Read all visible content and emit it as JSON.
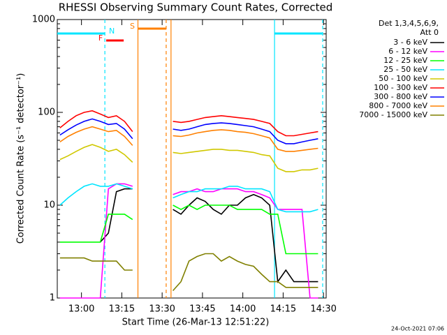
{
  "chart_data": {
    "type": "line",
    "title": "RHESSI Observing Summary Count Rates, Corrected",
    "x_label": "Start Time (26-Mar-13 12:51:22)",
    "y_label": "Corrected Count Rate (s⁻¹ detector⁻¹)",
    "legend_header": [
      "Det 1,3,4,5,6,9,",
      "Att 0"
    ],
    "footer": "24-Oct-2021 07:06",
    "log_y": true,
    "legend_position": "right",
    "xlim": [
      771,
      871
    ],
    "xticks": [
      {
        "value": 780,
        "label": "13:00"
      },
      {
        "value": 795,
        "label": "13:15"
      },
      {
        "value": 810,
        "label": "13:30"
      },
      {
        "value": 825,
        "label": "13:45"
      },
      {
        "value": 840,
        "label": "14:00"
      },
      {
        "value": 855,
        "label": "14:15"
      },
      {
        "value": 870,
        "label": "14:30"
      }
    ],
    "ylim": [
      1,
      1000
    ],
    "yticks": [
      1,
      10,
      100,
      1000
    ],
    "flags": [
      {
        "label": "N",
        "color": "#00e5ff",
        "intervals": [
          [
            771,
            788.7
          ],
          [
            851.8,
            869.7
          ]
        ]
      },
      {
        "label": "F",
        "color": "#ff0000",
        "intervals": [
          [
            789.2,
            795.7
          ]
        ]
      },
      {
        "label": "S",
        "color": "#ff8000",
        "intervals": [
          [
            801,
            811.5
          ]
        ]
      }
    ],
    "markers": [
      {
        "x": 788.7,
        "color": "#00e5ff",
        "style": "dashed"
      },
      {
        "x": 801,
        "color": "#ff8000",
        "style": "solid"
      },
      {
        "x": 811.5,
        "color": "#ff8000",
        "style": "dashed"
      },
      {
        "x": 813.3,
        "color": "#ff8000",
        "style": "solid"
      },
      {
        "x": 851.8,
        "color": "#00e5ff",
        "style": "solid"
      },
      {
        "x": 869.7,
        "color": "#00e5ff",
        "style": "dashed"
      }
    ],
    "x": [
      772,
      775,
      778,
      781,
      784,
      787,
      790,
      793,
      796,
      799,
      807,
      814,
      817,
      820,
      823,
      826,
      829,
      832,
      835,
      838,
      841,
      844,
      847,
      850,
      853,
      856,
      859,
      862,
      865,
      868
    ],
    "series": [
      {
        "name": "3 - 6 keV",
        "color": "#000000",
        "values": [
          null,
          null,
          null,
          null,
          null,
          4,
          5,
          14,
          15,
          15,
          null,
          9,
          8,
          10,
          12,
          11,
          9,
          8,
          10,
          10,
          12,
          13,
          12,
          10,
          1.5,
          2,
          1.5,
          1.5,
          1.5,
          1.5
        ]
      },
      {
        "name": "6 - 12 keV",
        "color": "#ff00ff",
        "values": [
          1,
          1,
          1,
          1,
          1,
          1,
          15,
          17,
          17,
          16,
          null,
          13,
          14,
          14,
          15,
          14,
          14,
          15,
          15,
          15,
          14,
          14,
          13,
          12,
          9,
          9,
          9,
          9,
          1,
          1
        ]
      },
      {
        "name": "12 - 25 keV",
        "color": "#00ff00",
        "values": [
          4,
          4,
          4,
          4,
          4,
          4,
          8,
          8,
          8,
          7,
          null,
          10,
          9,
          10,
          9,
          10,
          10,
          10,
          10,
          9,
          9,
          9,
          9,
          8,
          8,
          3,
          3,
          3,
          3,
          3
        ]
      },
      {
        "name": "25 - 50 keV",
        "color": "#00e5ff",
        "values": [
          10,
          12,
          14,
          16,
          17,
          16,
          16,
          17,
          16,
          15,
          null,
          12,
          13,
          14,
          14,
          15,
          15,
          15,
          16,
          16,
          15,
          15,
          15,
          14,
          9,
          8.5,
          8.5,
          8.5,
          8.5,
          9
        ]
      },
      {
        "name": "50 - 100 keV",
        "color": "#d0c800",
        "values": [
          31,
          34,
          38,
          42,
          45,
          42,
          38,
          40,
          35,
          29,
          null,
          37,
          36,
          37,
          38,
          39,
          40,
          40,
          39,
          39,
          38,
          37,
          35,
          34,
          25,
          23,
          23,
          24,
          24,
          25
        ]
      },
      {
        "name": "100 - 300 keV",
        "color": "#ff0000",
        "values": [
          68,
          80,
          92,
          100,
          104,
          96,
          88,
          92,
          80,
          62,
          null,
          80,
          78,
          80,
          84,
          88,
          90,
          92,
          90,
          88,
          86,
          84,
          80,
          76,
          62,
          56,
          56,
          58,
          60,
          62
        ]
      },
      {
        "name": "300 - 800 keV",
        "color": "#0000ff",
        "values": [
          57,
          65,
          73,
          80,
          85,
          80,
          74,
          76,
          66,
          52,
          null,
          66,
          64,
          66,
          70,
          74,
          76,
          77,
          76,
          74,
          72,
          70,
          66,
          62,
          50,
          46,
          46,
          48,
          50,
          52
        ]
      },
      {
        "name": "800 - 7000 keV",
        "color": "#ff8000",
        "values": [
          48,
          55,
          61,
          66,
          70,
          66,
          62,
          64,
          55,
          44,
          null,
          56,
          55,
          57,
          60,
          62,
          64,
          65,
          64,
          62,
          61,
          59,
          56,
          53,
          40,
          38,
          38,
          39,
          40,
          41
        ]
      },
      {
        "name": "7000 - 15000 keV",
        "color": "#808000",
        "values": [
          2.7,
          2.7,
          2.7,
          2.7,
          2.5,
          2.5,
          2.5,
          2.5,
          2,
          2,
          null,
          1.2,
          1.5,
          2.5,
          2.8,
          3,
          3,
          2.5,
          2.8,
          2.5,
          2.3,
          2.2,
          1.8,
          1.5,
          1.5,
          1.3,
          1.3,
          1.3,
          1.3,
          1.3
        ]
      }
    ]
  }
}
